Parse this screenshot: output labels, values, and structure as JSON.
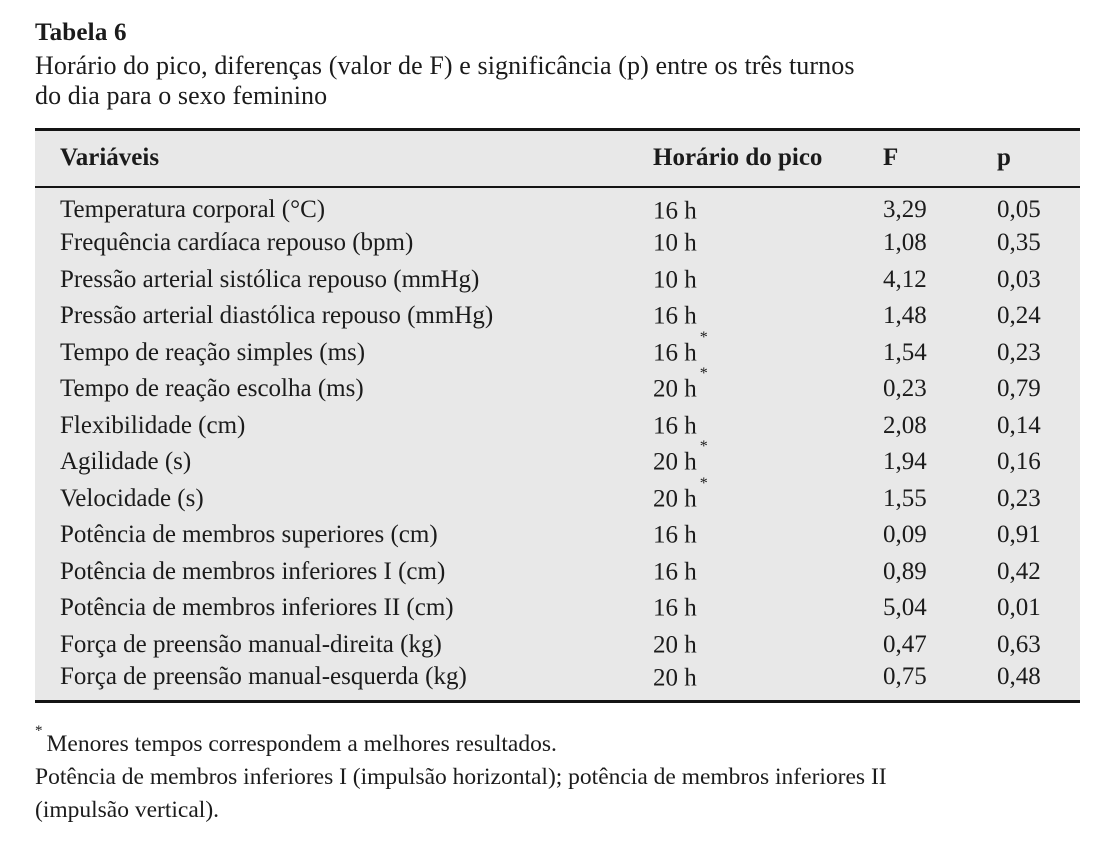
{
  "header": {
    "label": "Tabela 6",
    "caption_lines": [
      "Horário do pico, diferenças (valor de F) e significância (p) entre os três turnos",
      "do dia para o sexo feminino"
    ]
  },
  "table": {
    "columns": [
      "Variáveis",
      "Horário do pico",
      "F",
      "p"
    ],
    "rows": [
      {
        "variavel": "Temperatura corporal (°C)",
        "horario": "16 h",
        "mark": "",
        "f": "3,29",
        "p": "0,05"
      },
      {
        "variavel": "Frequência cardíaca repouso (bpm)",
        "horario": "10 h",
        "mark": "",
        "f": "1,08",
        "p": "0,35"
      },
      {
        "variavel": "Pressão arterial sistólica repouso (mmHg)",
        "horario": "10 h",
        "mark": "",
        "f": "4,12",
        "p": "0,03"
      },
      {
        "variavel": "Pressão arterial diastólica repouso (mmHg)",
        "horario": "16 h",
        "mark": "",
        "f": "1,48",
        "p": "0,24"
      },
      {
        "variavel": "Tempo de reação simples (ms)",
        "horario": "16 h",
        "mark": "*",
        "f": "1,54",
        "p": "0,23"
      },
      {
        "variavel": "Tempo de reação escolha (ms)",
        "horario": "20 h",
        "mark": "*",
        "f": "0,23",
        "p": "0,79"
      },
      {
        "variavel": "Flexibilidade (cm)",
        "horario": "16 h",
        "mark": "",
        "f": "2,08",
        "p": "0,14"
      },
      {
        "variavel": "Agilidade (s)",
        "horario": "20 h",
        "mark": "*",
        "f": "1,94",
        "p": "0,16"
      },
      {
        "variavel": "Velocidade (s)",
        "horario": "20 h",
        "mark": "*",
        "f": "1,55",
        "p": "0,23"
      },
      {
        "variavel": "Potência de membros superiores (cm)",
        "horario": "16 h",
        "mark": "",
        "f": "0,09",
        "p": "0,91"
      },
      {
        "variavel": "Potência de membros inferiores I (cm)",
        "horario": "16 h",
        "mark": "",
        "f": "0,89",
        "p": "0,42"
      },
      {
        "variavel": "Potência de membros inferiores II (cm)",
        "horario": "16 h",
        "mark": "",
        "f": "5,04",
        "p": "0,01"
      },
      {
        "variavel": "Força de preensão manual-direita (kg)",
        "horario": "20 h",
        "mark": "",
        "f": "0,47",
        "p": "0,63"
      },
      {
        "variavel": "Força de preensão manual-esquerda (kg)",
        "horario": "20 h",
        "mark": "",
        "f": "0,75",
        "p": "0,48"
      }
    ]
  },
  "footnotes": {
    "asterisk_mark": "*",
    "asterisk_text": "Menores tempos correspondem a melhores resultados.",
    "note_lines": [
      "Potência de membros inferiores I (impulsão horizontal); potência de membros inferiores II",
      "(impulsão vertical)."
    ]
  },
  "colors": {
    "table_background": "#e8e8e8",
    "rule": "#141414",
    "text": "#1b1b1b"
  }
}
